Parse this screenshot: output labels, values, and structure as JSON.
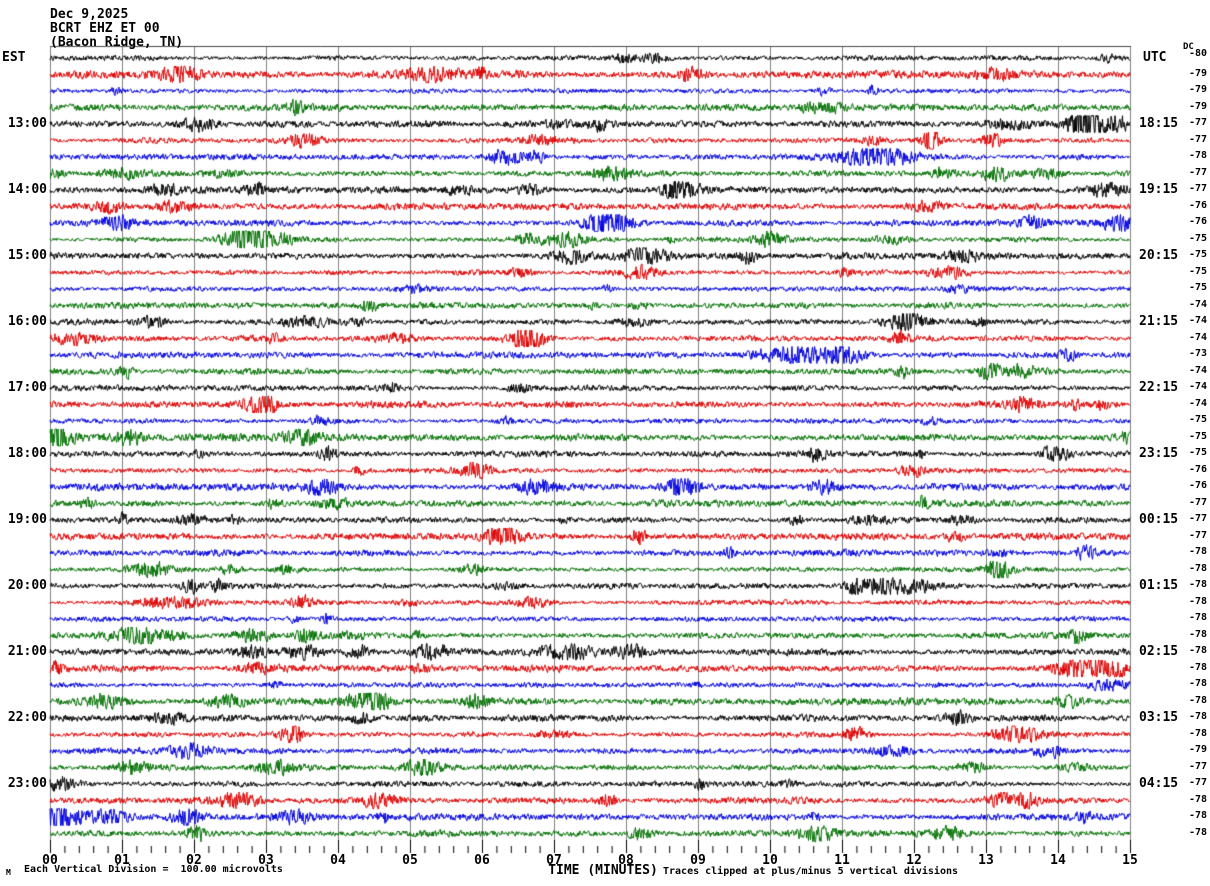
{
  "title": {
    "date": "Dec 9,2025",
    "station": "BCRT EHZ ET 00",
    "location": "(Bacon Ridge, TN)"
  },
  "axes": {
    "left_header": "EST",
    "right_header": "UTC",
    "dc_header": "DC",
    "x_label": "TIME (MINUTES)",
    "x_ticks": [
      "00",
      "01",
      "02",
      "03",
      "04",
      "05",
      "06",
      "07",
      "08",
      "09",
      "10",
      "11",
      "12",
      "13",
      "14",
      "15"
    ],
    "footer_left": "Each Vertical Division =  100.00 microvolts",
    "footer_right": "Traces clipped at plus/minus 5 vertical divisions",
    "corner_mark": "M"
  },
  "chart_data": {
    "type": "line",
    "subtype": "seismic-helicorder",
    "minutes_per_row": 15,
    "x_range_minutes": [
      0,
      15
    ],
    "minor_ticks_per_minute": 4,
    "microvolts_per_division": 100.0,
    "clip_divisions": 5,
    "trace_colors": {
      "black": "#000000",
      "red": "#dd0000",
      "blue": "#0000dd",
      "green": "#007000"
    },
    "grid_color": "#808080",
    "rows": [
      {
        "est": "",
        "utc": "",
        "dc": -80,
        "color": "black"
      },
      {
        "est": "",
        "utc": "",
        "dc": -79,
        "color": "red"
      },
      {
        "est": "",
        "utc": "",
        "dc": -79,
        "color": "blue"
      },
      {
        "est": "",
        "utc": "",
        "dc": -79,
        "color": "green"
      },
      {
        "est": "13:00",
        "utc": "18:15",
        "dc": -77,
        "color": "black"
      },
      {
        "est": "",
        "utc": "",
        "dc": -77,
        "color": "red"
      },
      {
        "est": "",
        "utc": "",
        "dc": -78,
        "color": "blue"
      },
      {
        "est": "",
        "utc": "",
        "dc": -77,
        "color": "green"
      },
      {
        "est": "14:00",
        "utc": "19:15",
        "dc": -77,
        "color": "black"
      },
      {
        "est": "",
        "utc": "",
        "dc": -76,
        "color": "red"
      },
      {
        "est": "",
        "utc": "",
        "dc": -76,
        "color": "blue"
      },
      {
        "est": "",
        "utc": "",
        "dc": -75,
        "color": "green"
      },
      {
        "est": "15:00",
        "utc": "20:15",
        "dc": -75,
        "color": "black"
      },
      {
        "est": "",
        "utc": "",
        "dc": -75,
        "color": "red"
      },
      {
        "est": "",
        "utc": "",
        "dc": -75,
        "color": "blue"
      },
      {
        "est": "",
        "utc": "",
        "dc": -74,
        "color": "green"
      },
      {
        "est": "16:00",
        "utc": "21:15",
        "dc": -74,
        "color": "black"
      },
      {
        "est": "",
        "utc": "",
        "dc": -74,
        "color": "red"
      },
      {
        "est": "",
        "utc": "",
        "dc": -73,
        "color": "blue"
      },
      {
        "est": "",
        "utc": "",
        "dc": -74,
        "color": "green"
      },
      {
        "est": "17:00",
        "utc": "22:15",
        "dc": -74,
        "color": "black"
      },
      {
        "est": "",
        "utc": "",
        "dc": -74,
        "color": "red"
      },
      {
        "est": "",
        "utc": "",
        "dc": -75,
        "color": "blue"
      },
      {
        "est": "",
        "utc": "",
        "dc": -75,
        "color": "green"
      },
      {
        "est": "18:00",
        "utc": "23:15",
        "dc": -75,
        "color": "black"
      },
      {
        "est": "",
        "utc": "",
        "dc": -76,
        "color": "red"
      },
      {
        "est": "",
        "utc": "",
        "dc": -76,
        "color": "blue"
      },
      {
        "est": "",
        "utc": "",
        "dc": -77,
        "color": "green"
      },
      {
        "est": "19:00",
        "utc": "00:15",
        "dc": -77,
        "color": "black"
      },
      {
        "est": "",
        "utc": "",
        "dc": -77,
        "color": "red"
      },
      {
        "est": "",
        "utc": "",
        "dc": -78,
        "color": "blue"
      },
      {
        "est": "",
        "utc": "",
        "dc": -78,
        "color": "green"
      },
      {
        "est": "20:00",
        "utc": "01:15",
        "dc": -78,
        "color": "black"
      },
      {
        "est": "",
        "utc": "",
        "dc": -78,
        "color": "red"
      },
      {
        "est": "",
        "utc": "",
        "dc": -78,
        "color": "blue"
      },
      {
        "est": "",
        "utc": "",
        "dc": -78,
        "color": "green"
      },
      {
        "est": "21:00",
        "utc": "02:15",
        "dc": -78,
        "color": "black"
      },
      {
        "est": "",
        "utc": "",
        "dc": -78,
        "color": "red"
      },
      {
        "est": "",
        "utc": "",
        "dc": -78,
        "color": "blue"
      },
      {
        "est": "",
        "utc": "",
        "dc": -78,
        "color": "green"
      },
      {
        "est": "22:00",
        "utc": "03:15",
        "dc": -78,
        "color": "black"
      },
      {
        "est": "",
        "utc": "",
        "dc": -78,
        "color": "red"
      },
      {
        "est": "",
        "utc": "",
        "dc": -79,
        "color": "blue"
      },
      {
        "est": "",
        "utc": "",
        "dc": -77,
        "color": "green"
      },
      {
        "est": "23:00",
        "utc": "04:15",
        "dc": -77,
        "color": "black"
      },
      {
        "est": "",
        "utc": "",
        "dc": -78,
        "color": "red"
      },
      {
        "est": "",
        "utc": "",
        "dc": -78,
        "color": "blue"
      },
      {
        "est": "",
        "utc": "",
        "dc": -78,
        "color": "green"
      }
    ],
    "events": [
      {
        "row": 4,
        "min": 14.6,
        "amp": 3.0,
        "w": 0.35
      },
      {
        "row": 6,
        "min": 11.5,
        "amp": 3.5,
        "w": 0.45
      },
      {
        "row": 9,
        "min": 1.7,
        "amp": 2.0,
        "w": 0.25
      },
      {
        "row": 11,
        "min": 3.0,
        "amp": 3.5,
        "w": 0.35
      },
      {
        "row": 12,
        "min": 8.3,
        "amp": 2.2,
        "w": 0.3
      },
      {
        "row": 13,
        "min": 8.2,
        "amp": 2.0,
        "w": 0.25
      },
      {
        "row": 16,
        "min": 3.6,
        "amp": 2.2,
        "w": 0.35
      },
      {
        "row": 16,
        "min": 11.9,
        "amp": 2.2,
        "w": 0.3
      },
      {
        "row": 17,
        "min": 0.4,
        "amp": 2.6,
        "w": 0.3
      },
      {
        "row": 18,
        "min": 10.3,
        "amp": 3.2,
        "w": 0.55
      },
      {
        "row": 29,
        "min": 6.3,
        "amp": 2.4,
        "w": 0.25
      },
      {
        "row": 32,
        "min": 11.5,
        "amp": 2.2,
        "w": 0.3
      },
      {
        "row": 33,
        "min": 1.6,
        "amp": 2.4,
        "w": 0.45
      },
      {
        "row": 35,
        "min": 3.6,
        "amp": 2.4,
        "w": 0.2
      },
      {
        "row": 38,
        "min": 14.7,
        "amp": 2.6,
        "w": 0.3
      },
      {
        "row": 42,
        "min": 1.95,
        "amp": 2.2,
        "w": 0.25
      },
      {
        "row": 43,
        "min": 3.1,
        "amp": 2.4,
        "w": 0.3
      },
      {
        "row": 44,
        "min": 0.15,
        "amp": 2.4,
        "w": 0.25
      },
      {
        "row": 45,
        "min": 2.6,
        "amp": 2.6,
        "w": 0.3
      },
      {
        "row": 45,
        "min": 13.2,
        "amp": 2.2,
        "w": 0.25
      },
      {
        "row": 46,
        "min": 0.2,
        "amp": 2.4,
        "w": 0.25
      }
    ]
  }
}
